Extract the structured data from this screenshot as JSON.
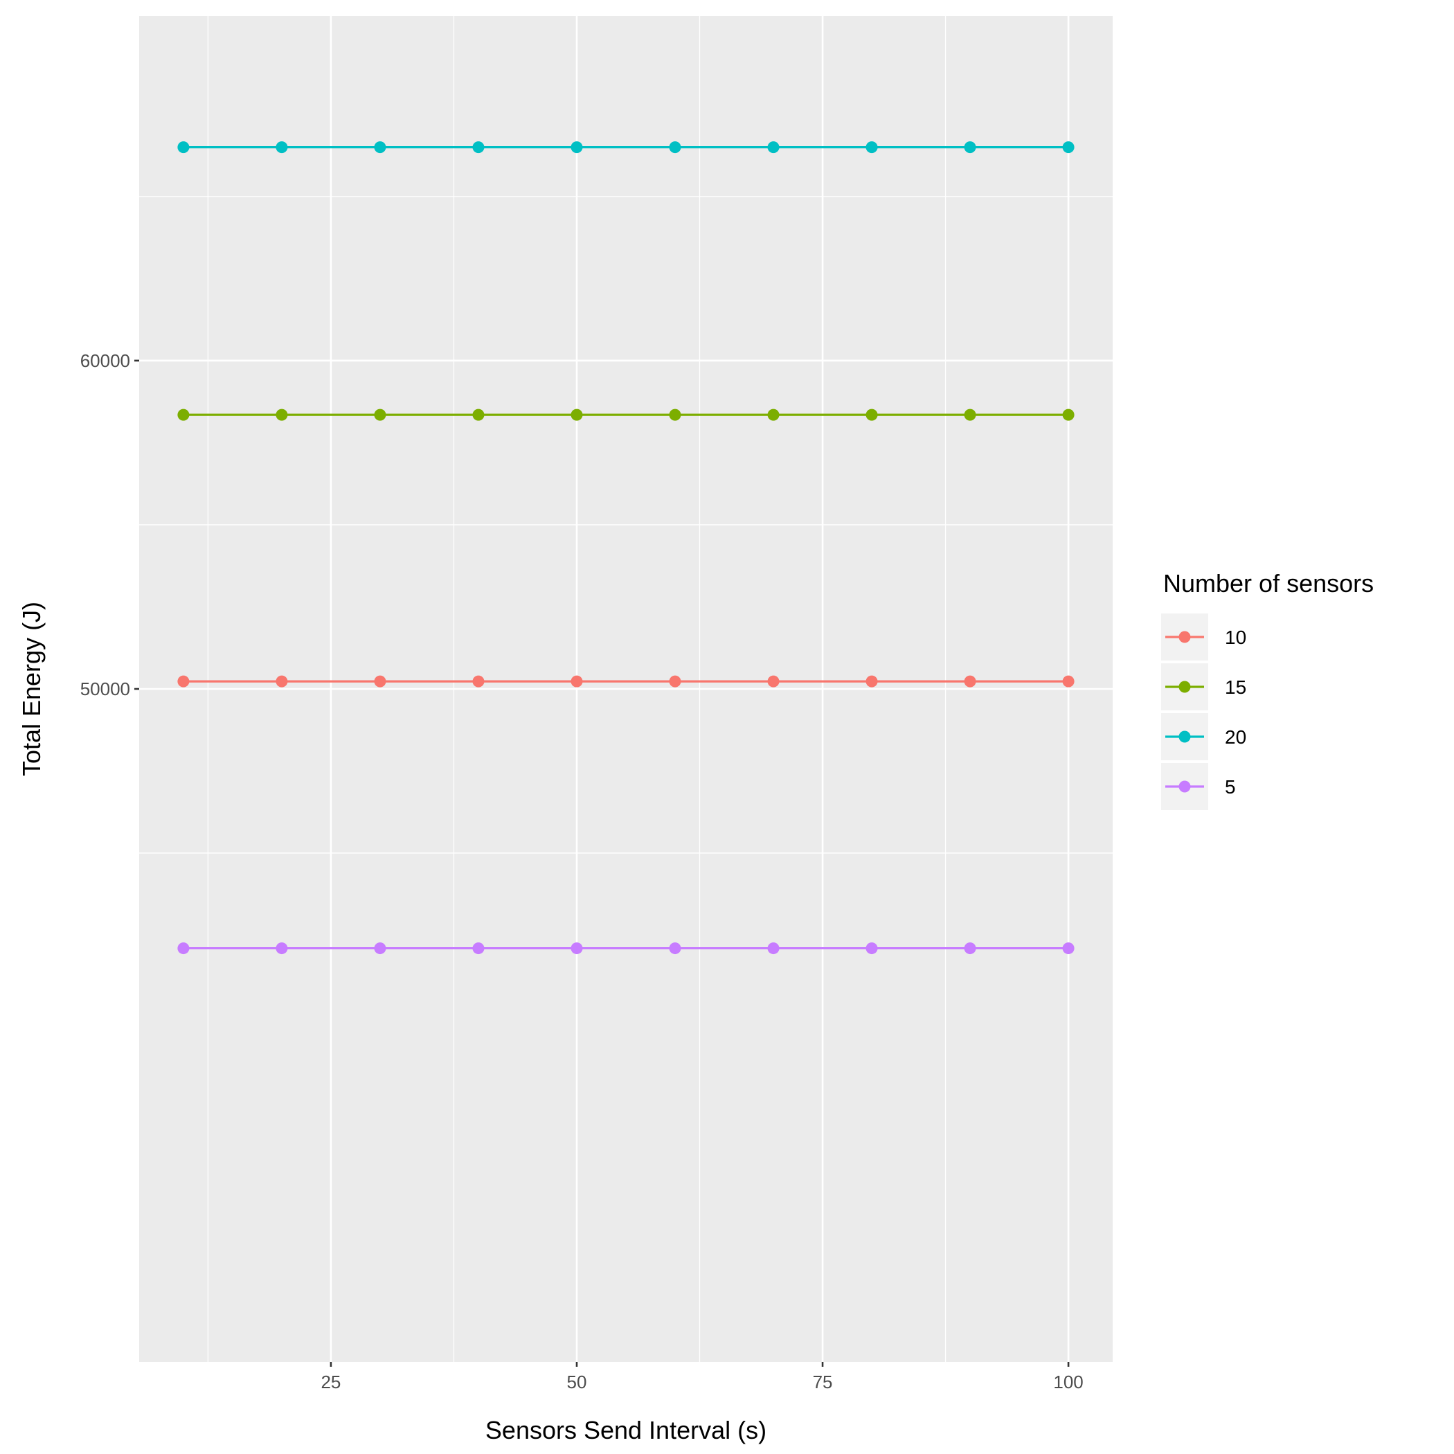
{
  "chart_data": {
    "type": "line",
    "title": "",
    "xlabel": "Sensors Send Interval (s)",
    "ylabel": "Total Energy (J)",
    "x": [
      10,
      20,
      30,
      40,
      50,
      60,
      70,
      80,
      90,
      100
    ],
    "xlim": [
      5.5,
      104.5
    ],
    "ylim": [
      29500,
      70500
    ],
    "x_ticks": [
      25,
      50,
      75,
      100
    ],
    "x_tick_labels": [
      "25",
      "50",
      "75",
      "100"
    ],
    "y_ticks": [
      50000,
      60000
    ],
    "y_tick_labels": [
      "50000",
      "60000"
    ],
    "grid": true,
    "legend": {
      "title": "Number of sensors",
      "placement": "right"
    },
    "series": [
      {
        "name": "10",
        "color": "#F8766D",
        "values": [
          50230,
          50230,
          50230,
          50230,
          50230,
          50230,
          50230,
          50230,
          50230,
          50230
        ]
      },
      {
        "name": "15",
        "color": "#7CAE00",
        "values": [
          58350,
          58350,
          58350,
          58350,
          58350,
          58350,
          58350,
          58350,
          58350,
          58350
        ]
      },
      {
        "name": "20",
        "color": "#00BFC4",
        "values": [
          66500,
          66500,
          66500,
          66500,
          66500,
          66500,
          66500,
          66500,
          66500,
          66500
        ]
      },
      {
        "name": "5",
        "color": "#C77CFF",
        "values": [
          42100,
          42100,
          42100,
          42100,
          42100,
          42100,
          42100,
          42100,
          42100,
          42100
        ]
      }
    ]
  }
}
